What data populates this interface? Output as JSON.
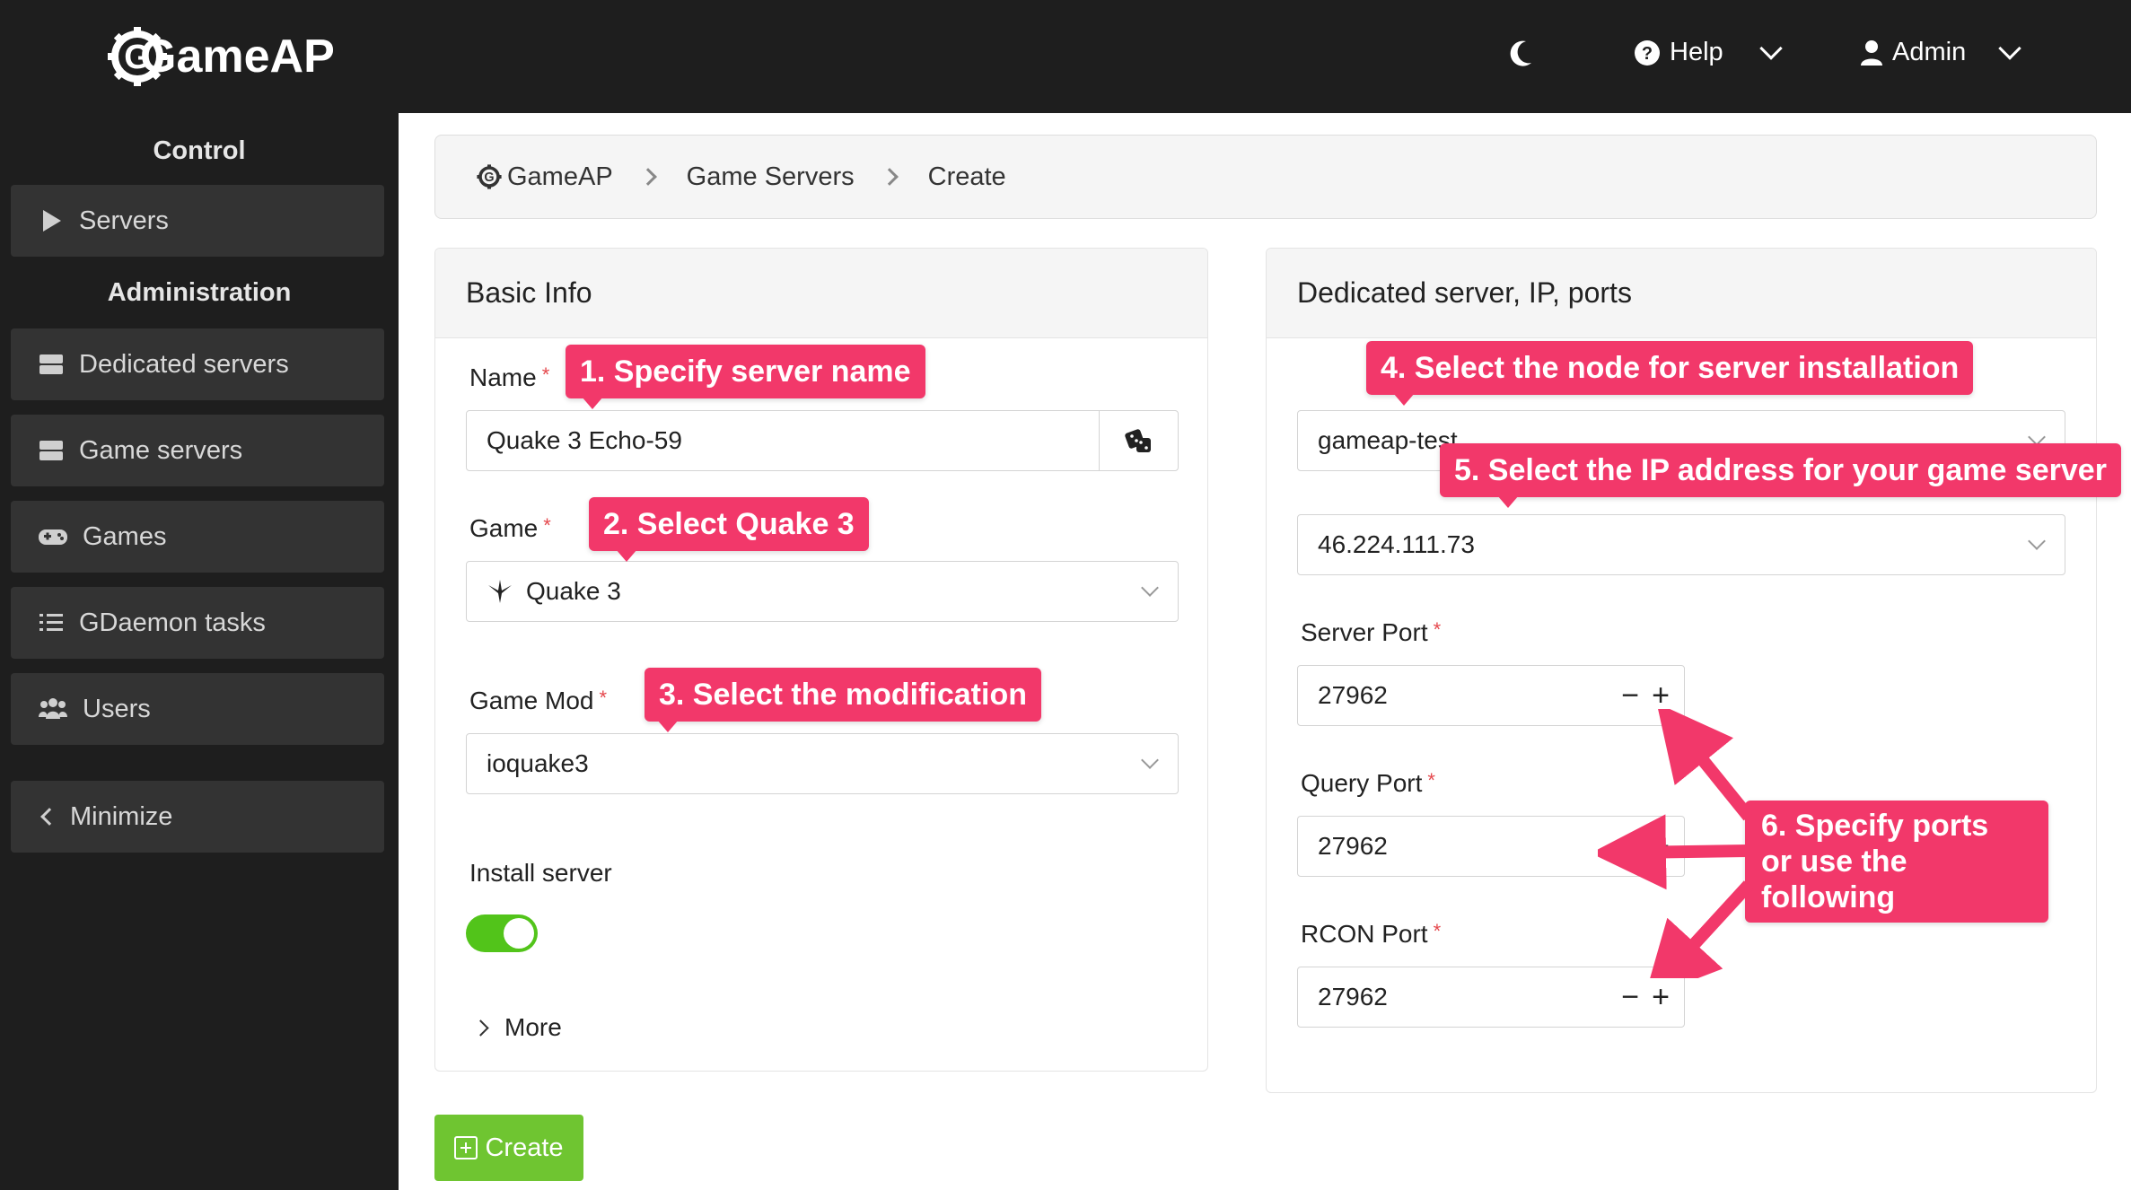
{
  "topbar": {
    "logo_text": "GameAP",
    "theme_icon": "moon-icon",
    "help_label": "Help",
    "admin_label": "Admin"
  },
  "sidebar": {
    "control_heading": "Control",
    "admin_heading": "Administration",
    "items": [
      {
        "label": "Servers",
        "icon": "play-icon"
      },
      {
        "label": "Dedicated servers",
        "icon": "server-icon"
      },
      {
        "label": "Game servers",
        "icon": "server-icon"
      },
      {
        "label": "Games",
        "icon": "gamepad-icon"
      },
      {
        "label": "GDaemon tasks",
        "icon": "tasks-icon"
      },
      {
        "label": "Users",
        "icon": "users-icon"
      }
    ],
    "minimize_label": "Minimize"
  },
  "breadcrumb": {
    "items": [
      "GameAP",
      "Game Servers",
      "Create"
    ]
  },
  "basic_info": {
    "title": "Basic Info",
    "name_label": "Name",
    "name_value": "Quake 3 Echo-59",
    "game_label": "Game",
    "game_value": "Quake 3",
    "mod_label": "Game Mod",
    "mod_value": "ioquake3",
    "install_label": "Install server",
    "install_enabled": true,
    "more_label": "More"
  },
  "dedicated": {
    "title": "Dedicated server, IP, ports",
    "node_value": "gameap-test",
    "ip_value": "46.224.111.73",
    "server_port_label": "Server Port",
    "server_port_value": "27962",
    "query_port_label": "Query Port",
    "query_port_value": "27962",
    "rcon_port_label": "RCON Port",
    "rcon_port_value": "27962",
    "minus": "−",
    "plus": "+"
  },
  "create_button": "Create",
  "callouts": {
    "c1": "1. Specify server name",
    "c2": "2. Select Quake 3",
    "c3": "3. Select the modification",
    "c4": "4. Select the node for server installation",
    "c5": "5. Select the IP address for your game server",
    "c6_line1": "6. Specify ports",
    "c6_line2": "or use the following"
  },
  "colors": {
    "topbar": "#1e1e1e",
    "sidebar_item": "#333333",
    "callout": "#f2386a",
    "toggle_on": "#52c41a",
    "create_button": "#6fc531"
  }
}
